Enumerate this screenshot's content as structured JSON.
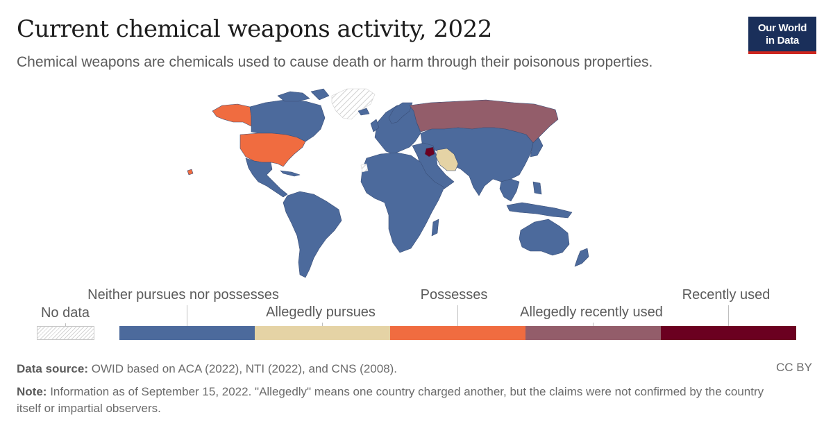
{
  "header": {
    "title": "Current chemical weapons activity, 2022",
    "subtitle": "Chemical weapons are chemicals used to cause death or harm through their poisonous properties.",
    "logo_line1": "Our World",
    "logo_line2": "in Data"
  },
  "legend": {
    "no_data": "No data",
    "categories": [
      {
        "label": "Neither pursues nor possesses",
        "color": "#4c6a9c"
      },
      {
        "label": "Allegedly pursues",
        "color": "#e5d3a5"
      },
      {
        "label": "Possesses",
        "color": "#f06c40"
      },
      {
        "label": "Allegedly recently used",
        "color": "#935d6a"
      },
      {
        "label": "Recently used",
        "color": "#6b0020"
      }
    ]
  },
  "footer": {
    "source_label": "Data source:",
    "source_text": "OWID based on ACA (2022), NTI (2022), and CNS (2008).",
    "note_label": "Note:",
    "note_text": "Information as of September 15, 2022. \"Allegedly\" means one country charged another, but the claims were not confirmed by the country itself or impartial observers.",
    "license": "CC BY"
  },
  "map_regions": [
    {
      "name": "United States",
      "category": "Possesses"
    },
    {
      "name": "Russia",
      "category": "Allegedly recently used"
    },
    {
      "name": "Iran",
      "category": "Allegedly pursues"
    },
    {
      "name": "Syria",
      "category": "Recently used"
    },
    {
      "name": "Greenland",
      "category": "No data"
    }
  ],
  "colors": {
    "no_data_hatch": "#d4d4d4",
    "border": "#3a4f78"
  }
}
